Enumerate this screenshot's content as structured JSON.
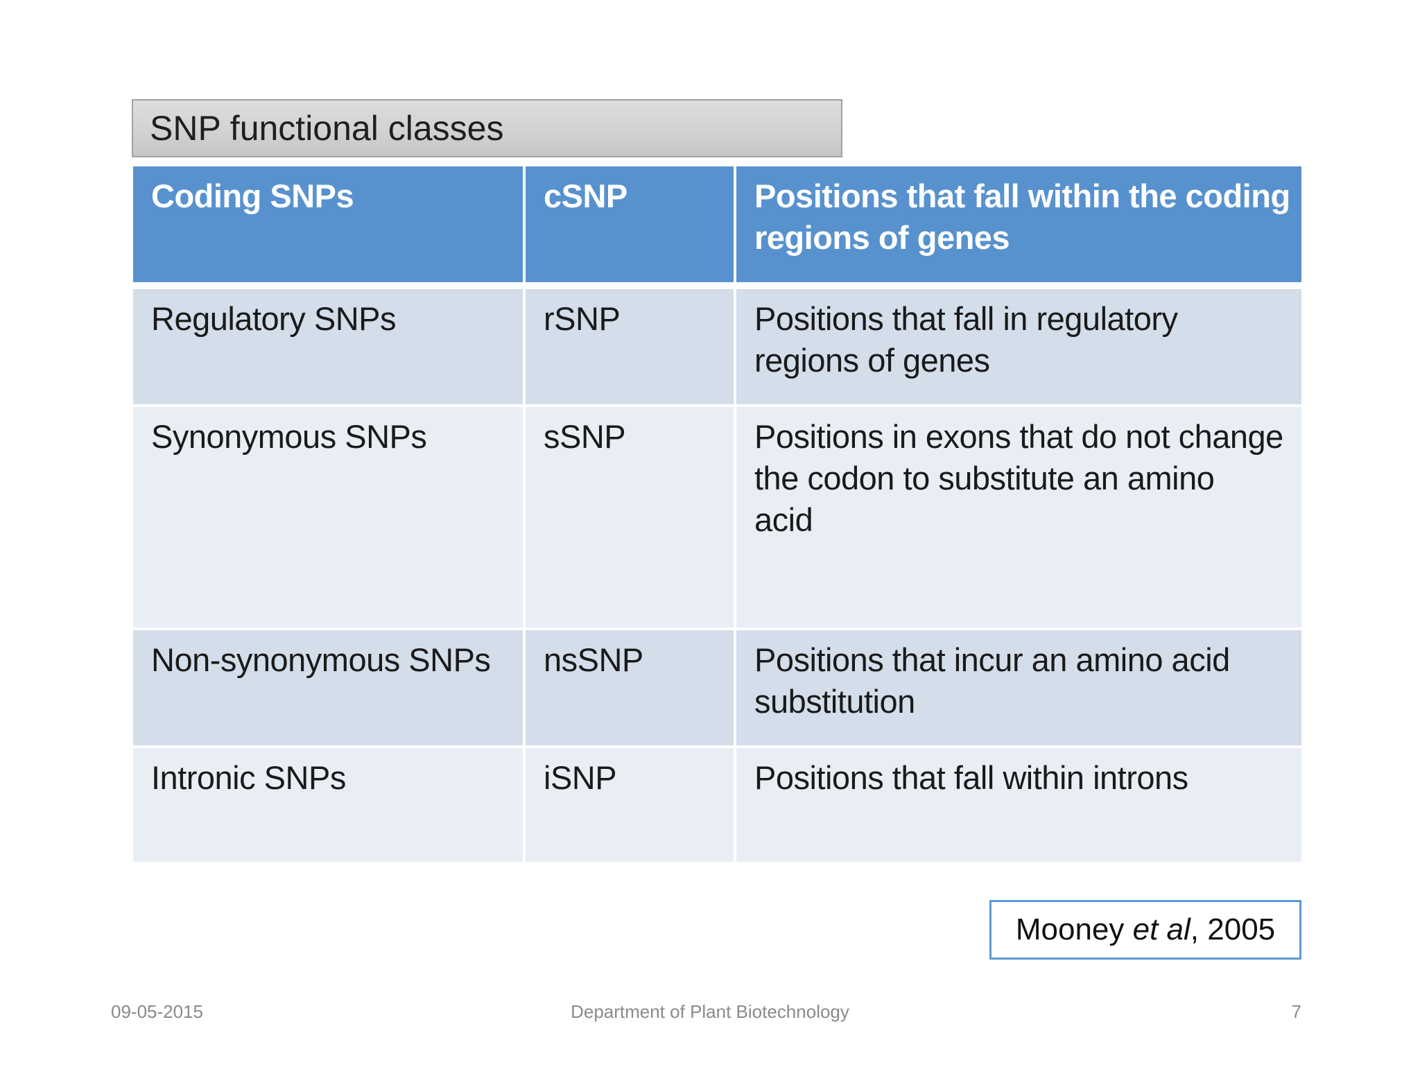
{
  "slide_title": "SNP functional classes",
  "table": {
    "header": {
      "class_name": "Coding SNPs",
      "abbr": "cSNP",
      "description": "Positions that fall within the coding\nregions of genes"
    },
    "rows": [
      {
        "class_name": "Regulatory SNPs",
        "abbr": "rSNP",
        "description": "Positions that fall in regulatory\nregions of genes"
      },
      {
        "class_name": "Synonymous SNPs",
        "abbr": "sSNP",
        "description": "Positions in exons that do not change\nthe codon to substitute an amino\nacid"
      },
      {
        "class_name": "Non-synonymous SNPs",
        "abbr": "nsSNP",
        "description": "Positions that incur an amino acid\nsubstitution"
      },
      {
        "class_name": "Intronic SNPs",
        "abbr": "iSNP",
        "description": "Positions that fall within introns"
      }
    ]
  },
  "citation": {
    "prefix": "Mooney ",
    "italic": "et al",
    "suffix": ", 2005"
  },
  "footer": {
    "date": "09-05-2015",
    "department": "Department of Plant Biotechnology",
    "page_number": "7"
  },
  "colors": {
    "header_blue": "#5892CE",
    "band_dark": "#D4DDEA",
    "band_light": "#E9EEF5",
    "title_bar_border": "#A2A2A2",
    "citation_border": "#5B9BD5",
    "footer_text": "#8A8A8A"
  }
}
